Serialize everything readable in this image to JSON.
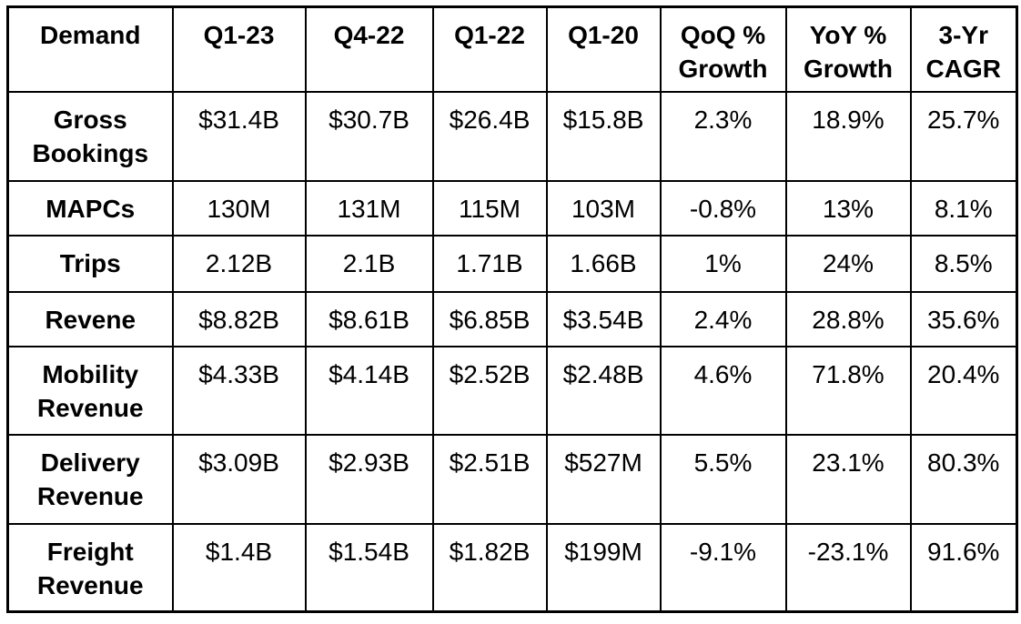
{
  "chart_data": {
    "type": "table",
    "columns": [
      "Demand",
      "Q1-23",
      "Q4-22",
      "Q1-22",
      "Q1-20",
      "QoQ %\nGrowth",
      "YoY %\nGrowth",
      "3-Yr\nCAGR"
    ],
    "rows": [
      [
        "Gross\nBookings",
        "$31.4B",
        "$30.7B",
        "$26.4B",
        "$15.8B",
        "2.3%",
        "18.9%",
        "25.7%"
      ],
      [
        "MAPCs",
        "130M",
        "131M",
        "115M",
        "103M",
        "-0.8%",
        "13%",
        "8.1%"
      ],
      [
        "Trips",
        "2.12B",
        "2.1B",
        "1.71B",
        "1.66B",
        "1%",
        "24%",
        "8.5%"
      ],
      [
        "Revene",
        "$8.82B",
        "$8.61B",
        "$6.85B",
        "$3.54B",
        "2.4%",
        "28.8%",
        "35.6%"
      ],
      [
        "Mobility\nRevenue",
        "$4.33B",
        "$4.14B",
        "$2.52B",
        "$2.48B",
        "4.6%",
        "71.8%",
        "20.4%"
      ],
      [
        "Delivery\nRevenue",
        "$3.09B",
        "$2.93B",
        "$2.51B",
        "$527M",
        "5.5%",
        "23.1%",
        "80.3%"
      ],
      [
        "Freight\nRevenue",
        "$1.4B",
        "$1.54B",
        "$1.82B",
        "$199M",
        "-9.1%",
        "-23.1%",
        "91.6%"
      ]
    ]
  },
  "style": {
    "border_color": "#000000",
    "text_color": "#000000",
    "background_color": "#ffffff"
  }
}
